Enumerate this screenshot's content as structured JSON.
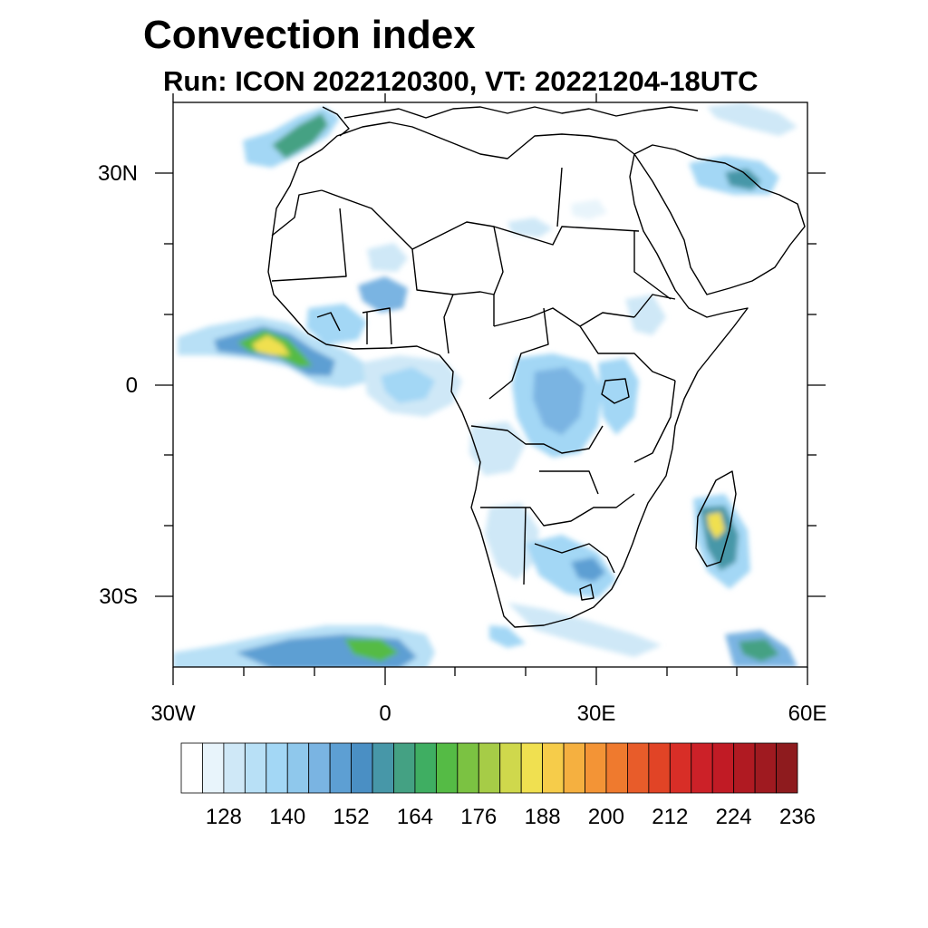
{
  "title": "Convection index",
  "subtitle": "Run: ICON 2022120300,  VT: 20221204-18UTC",
  "lat_labels": [
    "30N",
    "0",
    "30S"
  ],
  "lon_labels": [
    "30W",
    "0",
    "30E",
    "60E"
  ],
  "colorbar": {
    "colors": [
      "#ffffff",
      "#e8f4fb",
      "#cfe8f7",
      "#b8e0f6",
      "#a3d7f5",
      "#8fc8ec",
      "#7ab4e2",
      "#5d9fd3",
      "#4a8fc4",
      "#4797a8",
      "#44a183",
      "#3fae62",
      "#55bb45",
      "#7bc242",
      "#a6cc47",
      "#cfd84c",
      "#f0e050",
      "#f6cc4a",
      "#f5b040",
      "#f39436",
      "#ef7a2e",
      "#e85c2a",
      "#e14426",
      "#d82e27",
      "#cc2128",
      "#c11b25",
      "#b01a22",
      "#9f1a20",
      "#8e1b1e"
    ],
    "tick_labels": [
      "128",
      "140",
      "152",
      "164",
      "176",
      "188",
      "200",
      "212",
      "224",
      "236"
    ]
  }
}
